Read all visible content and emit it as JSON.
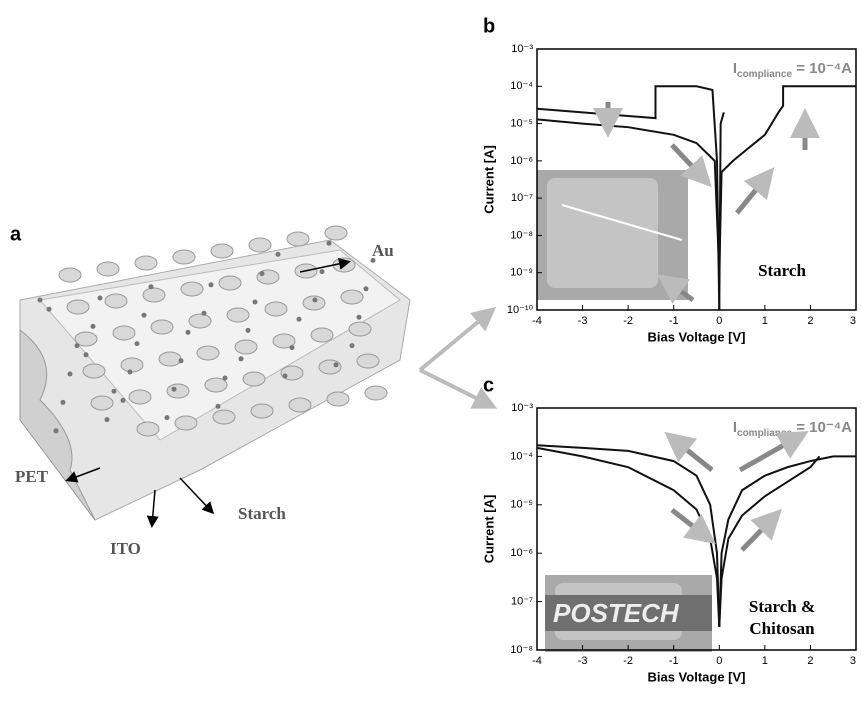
{
  "chart_data": [
    {
      "type": "line",
      "panel": "b",
      "log_y": true,
      "x_label": "Bias Voltage [V]",
      "y_label": "Current [A]",
      "annotation": {
        "main": "I",
        "sub": "compliance",
        "rest": " = 10⁻⁴A"
      },
      "sample_label": [
        "Starch"
      ],
      "xlim": [
        -4,
        3
      ],
      "xticks": [
        -4,
        -3,
        -2,
        -1,
        0,
        1,
        2,
        3
      ],
      "ylim": [
        1e-10,
        0.001
      ],
      "yticks": [
        {
          "value": 1e-10,
          "label": "10⁻¹⁰"
        },
        {
          "value": 1e-09,
          "label": "10⁻⁹"
        },
        {
          "value": 1e-08,
          "label": "10⁻⁸"
        },
        {
          "value": 1e-07,
          "label": "10⁻⁷"
        },
        {
          "value": 1e-06,
          "label": "10⁻⁶"
        },
        {
          "value": 1e-05,
          "label": "10⁻⁵"
        },
        {
          "value": 0.0001,
          "label": "10⁻⁴"
        },
        {
          "value": 0.001,
          "label": "10⁻³"
        }
      ],
      "series": [
        {
          "color": "#111111",
          "x": [
            -4,
            -3,
            -2,
            -1.4,
            -1.4,
            -0.5,
            -0.15,
            -0.05,
            0
          ],
          "values": [
            2.5e-05,
            2e-05,
            1.6e-05,
            1.4e-05,
            0.0001,
            0.0001,
            8e-05,
            1e-06,
            1e-10
          ]
        },
        {
          "color": "#111111",
          "x": [
            -4,
            -3,
            -2,
            -1,
            -0.5,
            -0.1,
            0
          ],
          "values": [
            1.3e-05,
            1e-05,
            8e-06,
            5e-06,
            3e-06,
            1e-06,
            1e-09
          ]
        },
        {
          "color": "#111111",
          "x": [
            0,
            0.05,
            0.3,
            0.6,
            1,
            1.3,
            1.4,
            1.4,
            2,
            3
          ],
          "values": [
            1e-09,
            5e-07,
            1e-06,
            2e-06,
            5e-06,
            2e-05,
            3e-05,
            0.0001,
            0.0001,
            0.0001
          ]
        },
        {
          "color": "#111111",
          "x": [
            0,
            0.03,
            0.1
          ],
          "values": [
            1e-10,
            1e-05,
            2e-05
          ]
        }
      ]
    },
    {
      "type": "line",
      "panel": "c",
      "log_y": true,
      "x_label": "Bias Voltage [V]",
      "y_label": "Current [A]",
      "annotation": {
        "main": "I",
        "sub": "compliance",
        "rest": " = 10⁻⁴A"
      },
      "sample_label": [
        "Starch &",
        "Chitosan"
      ],
      "inset_text": "POSTECH",
      "xlim": [
        -4,
        3
      ],
      "xticks": [
        -4,
        -3,
        -2,
        -1,
        0,
        1,
        2,
        3
      ],
      "ylim": [
        1e-08,
        0.001
      ],
      "yticks": [
        {
          "value": 1e-08,
          "label": "10⁻⁸"
        },
        {
          "value": 1e-07,
          "label": "10⁻⁷"
        },
        {
          "value": 1e-06,
          "label": "10⁻⁶"
        },
        {
          "value": 1e-05,
          "label": "10⁻⁵"
        },
        {
          "value": 0.0001,
          "label": "10⁻⁴"
        },
        {
          "value": 0.001,
          "label": "10⁻³"
        }
      ],
      "series": [
        {
          "color": "#111111",
          "x": [
            -4,
            -3,
            -2,
            -1,
            -0.5,
            -0.2,
            -0.05,
            0
          ],
          "values": [
            0.00017,
            0.00015,
            0.00013,
            8e-05,
            4e-05,
            1e-05,
            1e-06,
            3e-08
          ]
        },
        {
          "color": "#111111",
          "x": [
            -4,
            -3,
            -2,
            -1,
            -0.5,
            -0.2,
            -0.05,
            0
          ],
          "values": [
            0.00015,
            0.0001,
            6e-05,
            2e-05,
            8e-06,
            2e-06,
            3e-07,
            3e-08
          ]
        },
        {
          "color": "#111111",
          "x": [
            0,
            0.05,
            0.2,
            0.5,
            1,
            1.5,
            2,
            2.5,
            3
          ],
          "values": [
            3e-08,
            1e-06,
            5e-06,
            2e-05,
            4e-05,
            6e-05,
            8e-05,
            0.0001,
            0.0001
          ]
        },
        {
          "color": "#111111",
          "x": [
            0,
            0.05,
            0.2,
            0.5,
            1,
            1.5,
            2,
            2.2
          ],
          "values": [
            3e-08,
            3e-07,
            2e-06,
            6e-06,
            1.5e-05,
            3e-05,
            6e-05,
            0.0001
          ]
        }
      ]
    }
  ],
  "diagram": {
    "panel": "a",
    "labels": {
      "au": "Au",
      "pet": "PET",
      "ito": "ITO",
      "starch": "Starch"
    }
  }
}
